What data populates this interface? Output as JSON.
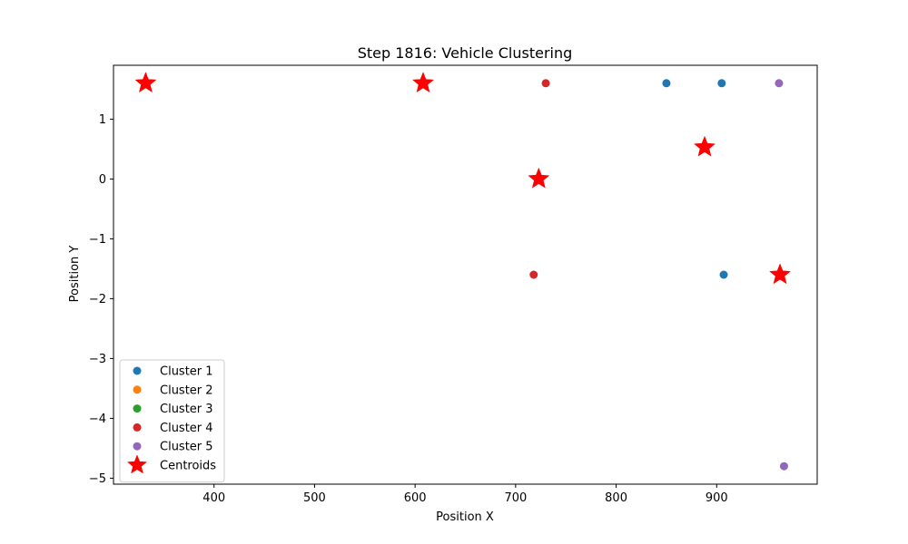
{
  "chart_data": {
    "type": "scatter",
    "title": "Step 1816: Vehicle Clustering",
    "xlabel": "Position X",
    "ylabel": "Position Y",
    "xlim": [
      300,
      1000
    ],
    "ylim": [
      -5.1,
      1.9
    ],
    "xticks": [
      400,
      500,
      600,
      700,
      800,
      900
    ],
    "yticks": [
      1,
      0,
      -1,
      -2,
      -3,
      -4,
      -5
    ],
    "grid": false,
    "legend_position": "lower-left",
    "series": [
      {
        "name": "Cluster 1",
        "color": "#1f77b4",
        "marker": "circle",
        "points": [
          [
            850,
            1.6
          ],
          [
            905,
            1.6
          ],
          [
            907,
            -1.6
          ]
        ]
      },
      {
        "name": "Cluster 2",
        "color": "#ff7f0e",
        "marker": "circle",
        "points": []
      },
      {
        "name": "Cluster 3",
        "color": "#2ca02c",
        "marker": "circle",
        "points": []
      },
      {
        "name": "Cluster 4",
        "color": "#d62728",
        "marker": "circle",
        "points": [
          [
            730,
            1.6
          ],
          [
            718,
            -1.6
          ]
        ]
      },
      {
        "name": "Cluster 5",
        "color": "#9467bd",
        "marker": "circle",
        "points": [
          [
            962,
            1.6
          ],
          [
            967,
            -4.8
          ]
        ]
      },
      {
        "name": "Centroids",
        "color": "#ff0000",
        "marker": "star",
        "points": [
          [
            332,
            1.6
          ],
          [
            608,
            1.6
          ],
          [
            723,
            0.0
          ],
          [
            888,
            0.53
          ],
          [
            963,
            -1.6
          ]
        ]
      }
    ]
  }
}
